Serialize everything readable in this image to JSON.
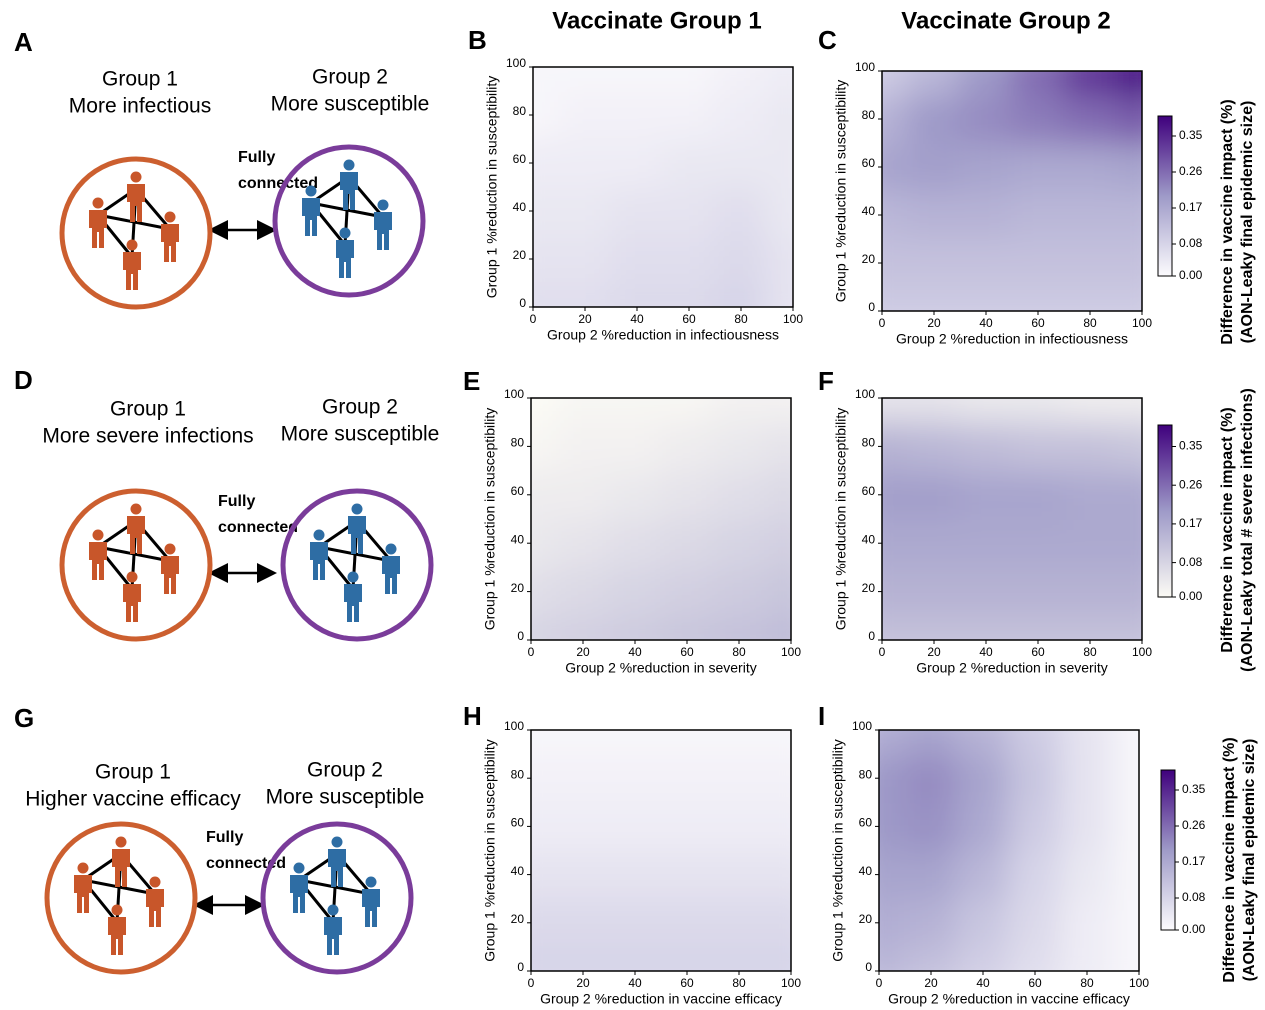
{
  "column_titles": [
    "Vaccinate Group 1",
    "Vaccinate Group 2"
  ],
  "diagrams": [
    {
      "panel": "A",
      "group1": [
        "Group 1",
        "More infectious"
      ],
      "group2": [
        "Group 2",
        "More susceptible"
      ],
      "link": [
        "Fully",
        "connected"
      ]
    },
    {
      "panel": "D",
      "group1": [
        "Group 1",
        "More severe infections"
      ],
      "group2": [
        "Group 2",
        "More susceptible"
      ],
      "link": [
        "Fully",
        "connected"
      ]
    },
    {
      "panel": "G",
      "group1": [
        "Group 1",
        "Higher vaccine efficacy"
      ],
      "group2": [
        "Group 2",
        "More susceptible"
      ],
      "link": [
        "Fully",
        "connected"
      ]
    }
  ],
  "chart_data": [
    {
      "panel": "B",
      "type": "contour",
      "x_label": "Group 2 %reduction in infectiousness",
      "y_label": "Group 1 %reduction in susceptibility",
      "xlim": [
        0,
        100
      ],
      "ylim": [
        0,
        100
      ],
      "xticks": [
        0,
        20,
        40,
        60,
        80,
        100
      ],
      "yticks": [
        0,
        20,
        40,
        60,
        80,
        100
      ],
      "x": [
        0,
        20,
        40,
        60,
        80,
        100
      ],
      "y": [
        0,
        20,
        40,
        60,
        80,
        100
      ],
      "z": [
        [
          0.06,
          0.06,
          0.07,
          0.07,
          0.08,
          0.05
        ],
        [
          0.05,
          0.05,
          0.06,
          0.06,
          0.07,
          0.05
        ],
        [
          0.04,
          0.04,
          0.05,
          0.05,
          0.06,
          0.04
        ],
        [
          0.03,
          0.03,
          0.03,
          0.04,
          0.04,
          0.04
        ],
        [
          0.01,
          0.02,
          0.02,
          0.02,
          0.03,
          0.04
        ],
        [
          0.01,
          0.01,
          0.01,
          0.01,
          0.02,
          0.03
        ]
      ]
    },
    {
      "panel": "C",
      "type": "contour",
      "x_label": "Group 2 %reduction in infectiousness",
      "y_label": "Group 1 %reduction in susceptibility",
      "xlim": [
        0,
        100
      ],
      "ylim": [
        0,
        100
      ],
      "xticks": [
        0,
        20,
        40,
        60,
        80,
        100
      ],
      "yticks": [
        0,
        20,
        40,
        60,
        80,
        100
      ],
      "x": [
        0,
        20,
        40,
        60,
        80,
        100
      ],
      "y": [
        0,
        20,
        40,
        60,
        80,
        100
      ],
      "z": [
        [
          0.1,
          0.1,
          0.1,
          0.1,
          0.1,
          0.1
        ],
        [
          0.12,
          0.12,
          0.12,
          0.12,
          0.12,
          0.12
        ],
        [
          0.14,
          0.15,
          0.15,
          0.14,
          0.14,
          0.14
        ],
        [
          0.18,
          0.19,
          0.18,
          0.17,
          0.17,
          0.18
        ],
        [
          0.15,
          0.2,
          0.22,
          0.24,
          0.26,
          0.28
        ],
        [
          0.1,
          0.14,
          0.2,
          0.26,
          0.33,
          0.38
        ]
      ]
    },
    {
      "panel": "E",
      "type": "contour",
      "x_label": "Group 2 %reduction in severity",
      "y_label": "Group 1 %reduction in susceptibility",
      "xlim": [
        0,
        100
      ],
      "ylim": [
        0,
        100
      ],
      "xticks": [
        0,
        20,
        40,
        60,
        80,
        100
      ],
      "yticks": [
        0,
        20,
        40,
        60,
        80,
        100
      ],
      "x": [
        0,
        20,
        40,
        60,
        80,
        100
      ],
      "y": [
        0,
        20,
        40,
        60,
        80,
        100
      ],
      "z": [
        [
          0.08,
          0.09,
          0.1,
          0.11,
          0.12,
          0.13
        ],
        [
          0.06,
          0.07,
          0.08,
          0.09,
          0.1,
          0.11
        ],
        [
          0.04,
          0.05,
          0.06,
          0.07,
          0.08,
          0.09
        ],
        [
          0.03,
          0.03,
          0.04,
          0.05,
          0.06,
          0.07
        ],
        [
          0.01,
          0.02,
          0.02,
          0.03,
          0.04,
          0.05
        ],
        [
          0,
          0.01,
          0.01,
          0.01,
          0.02,
          0.02
        ]
      ]
    },
    {
      "panel": "F",
      "type": "contour",
      "x_label": "Group 2 %reduction in severity",
      "y_label": "Group 1 %reduction in susceptibility",
      "xlim": [
        0,
        100
      ],
      "ylim": [
        0,
        100
      ],
      "xticks": [
        0,
        20,
        40,
        60,
        80,
        100
      ],
      "yticks": [
        0,
        20,
        40,
        60,
        80,
        100
      ],
      "x": [
        0,
        20,
        40,
        60,
        80,
        100
      ],
      "y": [
        0,
        20,
        40,
        60,
        80,
        100
      ],
      "z": [
        [
          0.12,
          0.12,
          0.12,
          0.12,
          0.12,
          0.12
        ],
        [
          0.15,
          0.15,
          0.15,
          0.15,
          0.15,
          0.15
        ],
        [
          0.17,
          0.17,
          0.17,
          0.17,
          0.17,
          0.17
        ],
        [
          0.19,
          0.19,
          0.18,
          0.18,
          0.17,
          0.17
        ],
        [
          0.15,
          0.14,
          0.13,
          0.12,
          0.12,
          0.11
        ],
        [
          0.05,
          0.05,
          0.04,
          0.04,
          0.03,
          0.03
        ]
      ]
    },
    {
      "panel": "H",
      "type": "contour",
      "x_label": "Group 2 %reduction in vaccine efficacy",
      "y_label": "Group 1 %reduction in susceptibility",
      "xlim": [
        0,
        100
      ],
      "ylim": [
        0,
        100
      ],
      "xticks": [
        0,
        20,
        40,
        60,
        80,
        100
      ],
      "yticks": [
        0,
        20,
        40,
        60,
        80,
        100
      ],
      "x": [
        0,
        20,
        40,
        60,
        80,
        100
      ],
      "y": [
        0,
        20,
        40,
        60,
        80,
        100
      ],
      "z": [
        [
          0.08,
          0.08,
          0.08,
          0.08,
          0.08,
          0.08
        ],
        [
          0.07,
          0.07,
          0.07,
          0.07,
          0.07,
          0.07
        ],
        [
          0.05,
          0.05,
          0.05,
          0.05,
          0.05,
          0.05
        ],
        [
          0.03,
          0.03,
          0.03,
          0.03,
          0.03,
          0.03
        ],
        [
          0.02,
          0.02,
          0.02,
          0.02,
          0.02,
          0.02
        ],
        [
          0.01,
          0.01,
          0.01,
          0.01,
          0.01,
          0.01
        ]
      ]
    },
    {
      "panel": "I",
      "type": "contour",
      "x_label": "Group 2 %reduction in vaccine efficacy",
      "y_label": "Group 1 %reduction in susceptibility",
      "xlim": [
        0,
        100
      ],
      "ylim": [
        0,
        100
      ],
      "xticks": [
        0,
        20,
        40,
        60,
        80,
        100
      ],
      "yticks": [
        0,
        20,
        40,
        60,
        80,
        100
      ],
      "x": [
        0,
        20,
        40,
        60,
        80,
        100
      ],
      "y": [
        0,
        20,
        40,
        60,
        80,
        100
      ],
      "z": [
        [
          0.14,
          0.12,
          0.09,
          0.06,
          0.03,
          0.01
        ],
        [
          0.16,
          0.15,
          0.11,
          0.07,
          0.03,
          0.01
        ],
        [
          0.18,
          0.18,
          0.14,
          0.08,
          0.04,
          0.01
        ],
        [
          0.2,
          0.21,
          0.17,
          0.1,
          0.05,
          0.01
        ],
        [
          0.2,
          0.22,
          0.18,
          0.11,
          0.05,
          0.01
        ],
        [
          0.16,
          0.18,
          0.15,
          0.1,
          0.05,
          0.01
        ]
      ]
    }
  ],
  "colorbars": [
    {
      "label": [
        "Difference in vaccine impact (%)",
        "(AON-Leaky final epidemic size)"
      ],
      "zlim": [
        0,
        0.4
      ],
      "ticks": [
        {
          "value": 0,
          "label": "0.00"
        },
        0.08,
        0.17,
        0.26,
        0.35
      ],
      "colors": [
        "#fcfbfd",
        "#9e9ac8",
        "#3f007d"
      ]
    },
    {
      "label": [
        "Difference in vaccine impact (%)",
        "(AON-Leaky total # severe infections)"
      ],
      "zlim": [
        0,
        0.4
      ],
      "ticks": [
        {
          "value": 0,
          "label": "0.00"
        },
        0.08,
        0.17,
        0.26,
        0.35
      ],
      "colors": [
        "#fcfbf5",
        "#9e9ac8",
        "#3f007d"
      ]
    },
    {
      "label": [
        "Difference in vaccine impact (%)",
        "(AON-Leaky final epidemic size)"
      ],
      "zlim": [
        0,
        0.4
      ],
      "ticks": [
        {
          "value": 0,
          "label": "0.00"
        },
        0.08,
        0.17,
        0.26,
        0.35
      ],
      "colors": [
        "#fcfbfd",
        "#9e9ac8",
        "#3f007d"
      ]
    }
  ]
}
